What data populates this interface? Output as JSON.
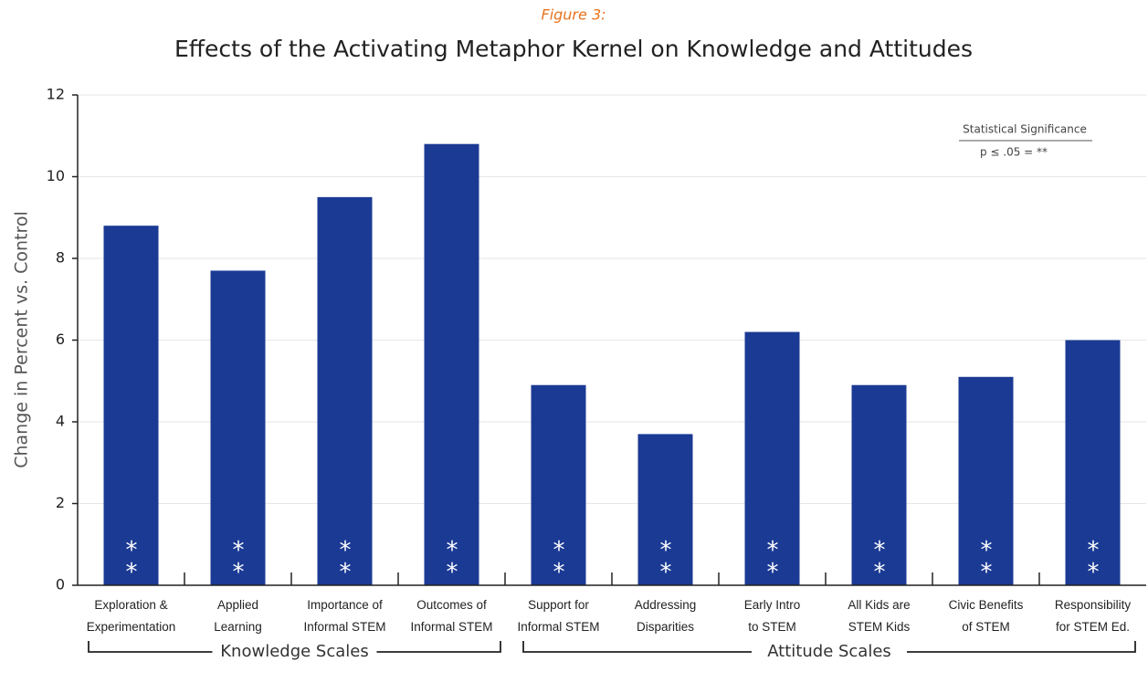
{
  "chart_data": {
    "type": "bar",
    "figure_label": "Figure 3:",
    "title": "Effects of the Activating Metaphor Kernel on Knowledge and Attitudes",
    "y_label": "Change in Percent vs. Control",
    "categories": [
      [
        "Exploration &",
        "Experimentation"
      ],
      [
        "Applied",
        "Learning"
      ],
      [
        "Importance of",
        "Informal STEM"
      ],
      [
        "Outcomes of",
        "Informal STEM"
      ],
      [
        "Support for",
        "Informal STEM"
      ],
      [
        "Addressing",
        "Disparities"
      ],
      [
        "Early Intro",
        "to STEM"
      ],
      [
        "All Kids are",
        "STEM Kids"
      ],
      [
        "Civic Benefits",
        "of STEM"
      ],
      [
        "Responsibility",
        "for STEM Ed."
      ]
    ],
    "values": [
      8.8,
      7.7,
      9.5,
      10.8,
      4.9,
      3.7,
      6.2,
      4.9,
      5.1,
      6.0
    ],
    "bar_annotations": [
      "**",
      "**",
      "**",
      "**",
      "**",
      "**",
      "**",
      "**",
      "**",
      "**"
    ],
    "color": "#1b3a94",
    "ylim": [
      0,
      12
    ],
    "yticks": [
      0,
      2,
      4,
      6,
      8,
      10,
      12
    ],
    "grid": true,
    "legend": {
      "title": "Statistical Significance",
      "text": "p ≤ .05 = **"
    },
    "groups": [
      "Knowledge Scales",
      "Attitude Scales"
    ]
  }
}
